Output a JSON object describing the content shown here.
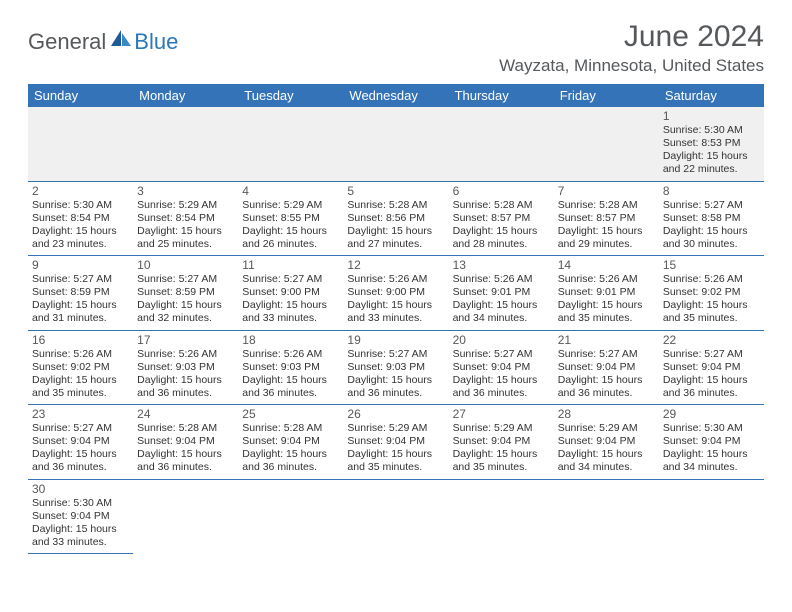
{
  "logo": {
    "general": "General",
    "blue": "Blue"
  },
  "colors": {
    "header_bg": "#3573b9",
    "header_text": "#ffffff",
    "title_text": "#56595c",
    "logo_blue": "#2b77b8",
    "cell_border": "#3573b9",
    "blank_bg": "#f0f0f0"
  },
  "title": "June 2024",
  "location": "Wayzata, Minnesota, United States",
  "weekdays": [
    "Sunday",
    "Monday",
    "Tuesday",
    "Wednesday",
    "Thursday",
    "Friday",
    "Saturday"
  ],
  "weeks": [
    [
      null,
      null,
      null,
      null,
      null,
      null,
      {
        "n": "1",
        "sr": "Sunrise: 5:30 AM",
        "ss": "Sunset: 8:53 PM",
        "d1": "Daylight: 15 hours",
        "d2": "and 22 minutes."
      }
    ],
    [
      {
        "n": "2",
        "sr": "Sunrise: 5:30 AM",
        "ss": "Sunset: 8:54 PM",
        "d1": "Daylight: 15 hours",
        "d2": "and 23 minutes."
      },
      {
        "n": "3",
        "sr": "Sunrise: 5:29 AM",
        "ss": "Sunset: 8:54 PM",
        "d1": "Daylight: 15 hours",
        "d2": "and 25 minutes."
      },
      {
        "n": "4",
        "sr": "Sunrise: 5:29 AM",
        "ss": "Sunset: 8:55 PM",
        "d1": "Daylight: 15 hours",
        "d2": "and 26 minutes."
      },
      {
        "n": "5",
        "sr": "Sunrise: 5:28 AM",
        "ss": "Sunset: 8:56 PM",
        "d1": "Daylight: 15 hours",
        "d2": "and 27 minutes."
      },
      {
        "n": "6",
        "sr": "Sunrise: 5:28 AM",
        "ss": "Sunset: 8:57 PM",
        "d1": "Daylight: 15 hours",
        "d2": "and 28 minutes."
      },
      {
        "n": "7",
        "sr": "Sunrise: 5:28 AM",
        "ss": "Sunset: 8:57 PM",
        "d1": "Daylight: 15 hours",
        "d2": "and 29 minutes."
      },
      {
        "n": "8",
        "sr": "Sunrise: 5:27 AM",
        "ss": "Sunset: 8:58 PM",
        "d1": "Daylight: 15 hours",
        "d2": "and 30 minutes."
      }
    ],
    [
      {
        "n": "9",
        "sr": "Sunrise: 5:27 AM",
        "ss": "Sunset: 8:59 PM",
        "d1": "Daylight: 15 hours",
        "d2": "and 31 minutes."
      },
      {
        "n": "10",
        "sr": "Sunrise: 5:27 AM",
        "ss": "Sunset: 8:59 PM",
        "d1": "Daylight: 15 hours",
        "d2": "and 32 minutes."
      },
      {
        "n": "11",
        "sr": "Sunrise: 5:27 AM",
        "ss": "Sunset: 9:00 PM",
        "d1": "Daylight: 15 hours",
        "d2": "and 33 minutes."
      },
      {
        "n": "12",
        "sr": "Sunrise: 5:26 AM",
        "ss": "Sunset: 9:00 PM",
        "d1": "Daylight: 15 hours",
        "d2": "and 33 minutes."
      },
      {
        "n": "13",
        "sr": "Sunrise: 5:26 AM",
        "ss": "Sunset: 9:01 PM",
        "d1": "Daylight: 15 hours",
        "d2": "and 34 minutes."
      },
      {
        "n": "14",
        "sr": "Sunrise: 5:26 AM",
        "ss": "Sunset: 9:01 PM",
        "d1": "Daylight: 15 hours",
        "d2": "and 35 minutes."
      },
      {
        "n": "15",
        "sr": "Sunrise: 5:26 AM",
        "ss": "Sunset: 9:02 PM",
        "d1": "Daylight: 15 hours",
        "d2": "and 35 minutes."
      }
    ],
    [
      {
        "n": "16",
        "sr": "Sunrise: 5:26 AM",
        "ss": "Sunset: 9:02 PM",
        "d1": "Daylight: 15 hours",
        "d2": "and 35 minutes."
      },
      {
        "n": "17",
        "sr": "Sunrise: 5:26 AM",
        "ss": "Sunset: 9:03 PM",
        "d1": "Daylight: 15 hours",
        "d2": "and 36 minutes."
      },
      {
        "n": "18",
        "sr": "Sunrise: 5:26 AM",
        "ss": "Sunset: 9:03 PM",
        "d1": "Daylight: 15 hours",
        "d2": "and 36 minutes."
      },
      {
        "n": "19",
        "sr": "Sunrise: 5:27 AM",
        "ss": "Sunset: 9:03 PM",
        "d1": "Daylight: 15 hours",
        "d2": "and 36 minutes."
      },
      {
        "n": "20",
        "sr": "Sunrise: 5:27 AM",
        "ss": "Sunset: 9:04 PM",
        "d1": "Daylight: 15 hours",
        "d2": "and 36 minutes."
      },
      {
        "n": "21",
        "sr": "Sunrise: 5:27 AM",
        "ss": "Sunset: 9:04 PM",
        "d1": "Daylight: 15 hours",
        "d2": "and 36 minutes."
      },
      {
        "n": "22",
        "sr": "Sunrise: 5:27 AM",
        "ss": "Sunset: 9:04 PM",
        "d1": "Daylight: 15 hours",
        "d2": "and 36 minutes."
      }
    ],
    [
      {
        "n": "23",
        "sr": "Sunrise: 5:27 AM",
        "ss": "Sunset: 9:04 PM",
        "d1": "Daylight: 15 hours",
        "d2": "and 36 minutes."
      },
      {
        "n": "24",
        "sr": "Sunrise: 5:28 AM",
        "ss": "Sunset: 9:04 PM",
        "d1": "Daylight: 15 hours",
        "d2": "and 36 minutes."
      },
      {
        "n": "25",
        "sr": "Sunrise: 5:28 AM",
        "ss": "Sunset: 9:04 PM",
        "d1": "Daylight: 15 hours",
        "d2": "and 36 minutes."
      },
      {
        "n": "26",
        "sr": "Sunrise: 5:29 AM",
        "ss": "Sunset: 9:04 PM",
        "d1": "Daylight: 15 hours",
        "d2": "and 35 minutes."
      },
      {
        "n": "27",
        "sr": "Sunrise: 5:29 AM",
        "ss": "Sunset: 9:04 PM",
        "d1": "Daylight: 15 hours",
        "d2": "and 35 minutes."
      },
      {
        "n": "28",
        "sr": "Sunrise: 5:29 AM",
        "ss": "Sunset: 9:04 PM",
        "d1": "Daylight: 15 hours",
        "d2": "and 34 minutes."
      },
      {
        "n": "29",
        "sr": "Sunrise: 5:30 AM",
        "ss": "Sunset: 9:04 PM",
        "d1": "Daylight: 15 hours",
        "d2": "and 34 minutes."
      }
    ],
    [
      {
        "n": "30",
        "sr": "Sunrise: 5:30 AM",
        "ss": "Sunset: 9:04 PM",
        "d1": "Daylight: 15 hours",
        "d2": "and 33 minutes."
      },
      null,
      null,
      null,
      null,
      null,
      null
    ]
  ]
}
